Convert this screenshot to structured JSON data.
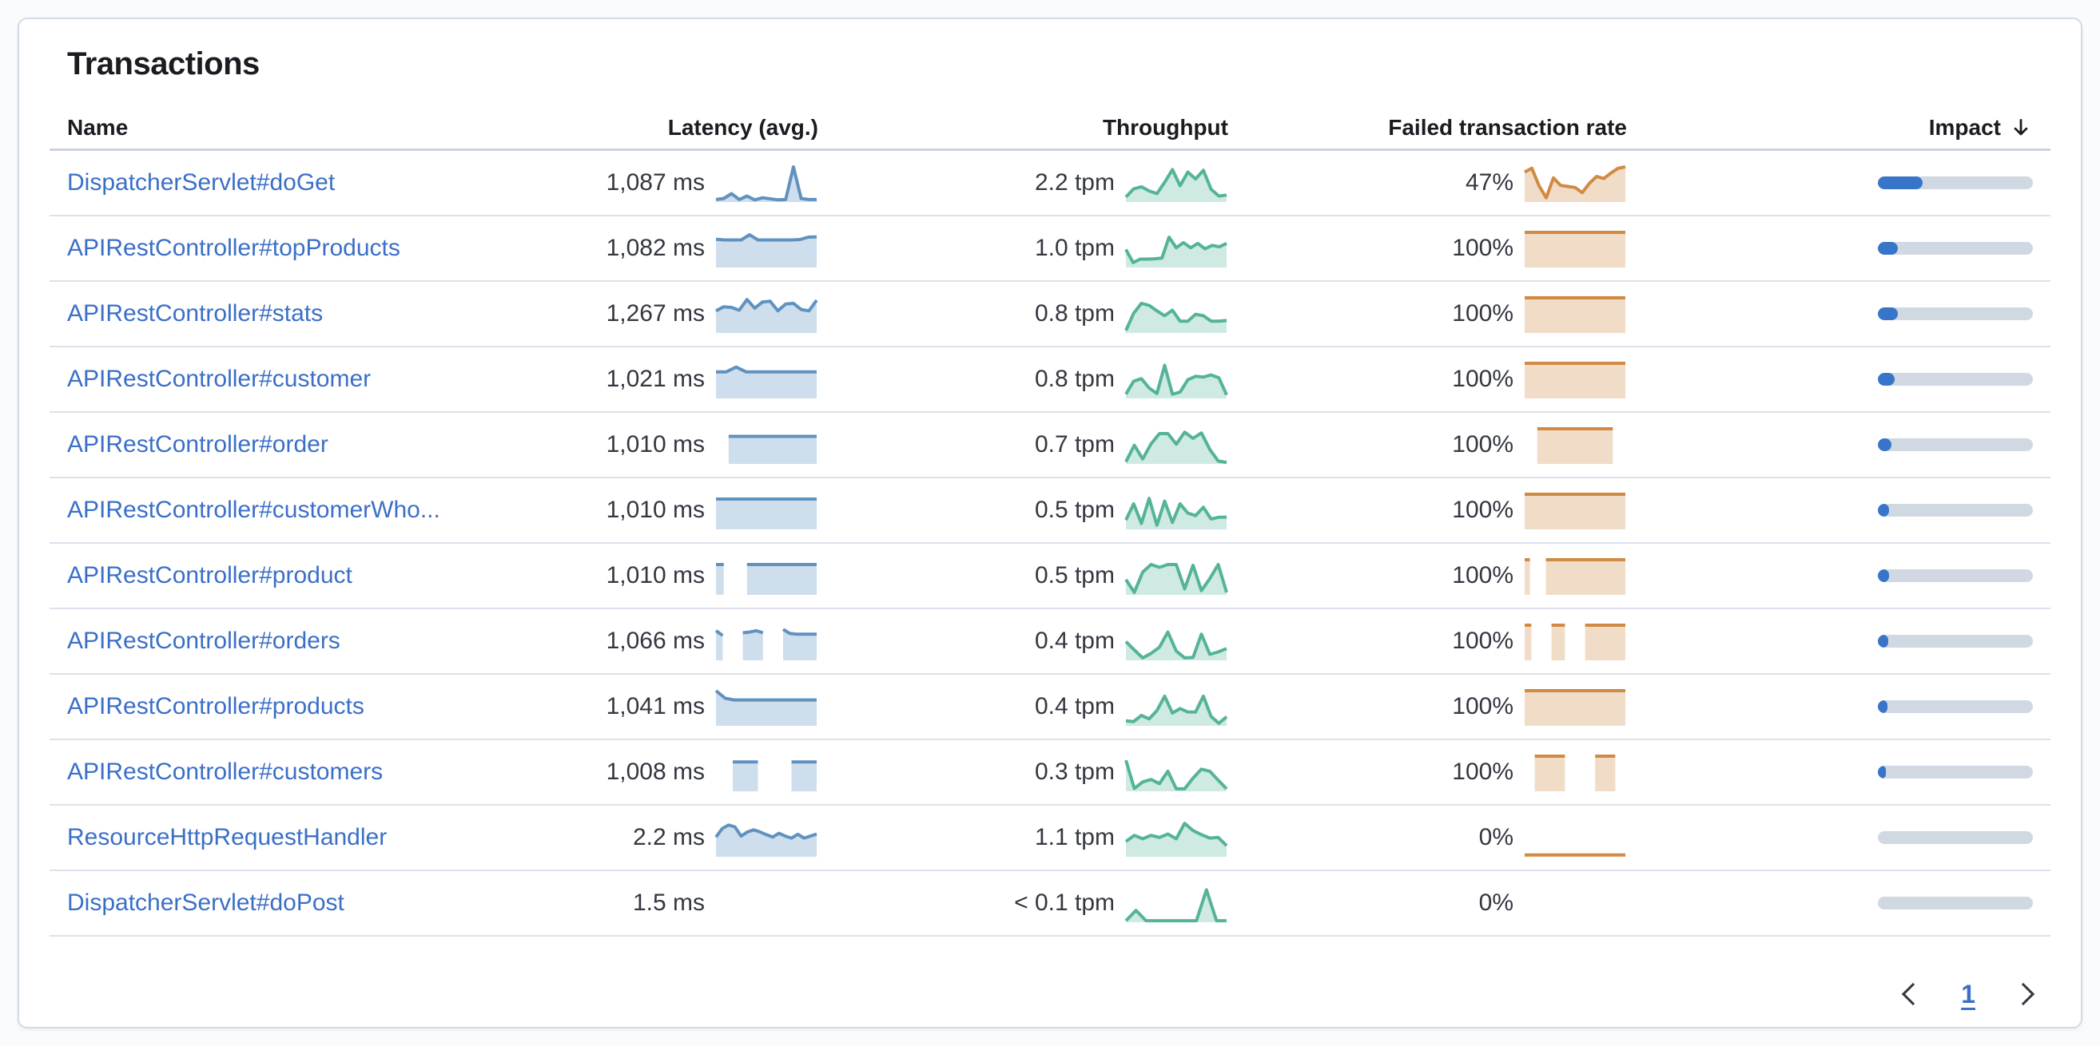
{
  "card": {
    "title": "Transactions"
  },
  "table": {
    "columns": [
      {
        "label": "Name",
        "align": "left"
      },
      {
        "label": "Latency (avg.)",
        "align": "right"
      },
      {
        "label": "Throughput",
        "align": "right"
      },
      {
        "label": "Failed transaction rate",
        "align": "right"
      },
      {
        "label": "Impact",
        "align": "right",
        "sorted": "desc",
        "sort_icon": "arrow-down"
      }
    ],
    "rows": [
      {
        "name": "DispatcherServlet#doGet",
        "latency": "1,087 ms",
        "throughput": "2.2 tpm",
        "failed_rate": "47%",
        "impact_pct": 29,
        "latency_spark": [
          0.05,
          0.08,
          0.22,
          0.05,
          0.15,
          0.04,
          0.1,
          0.07,
          0.04,
          0.05,
          1.0,
          0.08,
          0.05,
          0.05
        ],
        "throughput_spark": [
          0.12,
          0.36,
          0.42,
          0.3,
          0.22,
          0.55,
          0.92,
          0.45,
          0.85,
          0.65,
          0.9,
          0.35,
          0.15,
          0.18
        ],
        "failed_spark": [
          0.85,
          0.96,
          0.45,
          0.1,
          0.68,
          0.46,
          0.43,
          0.4,
          0.25,
          0.52,
          0.72,
          0.66,
          0.82,
          0.96,
          1.0
        ]
      },
      {
        "name": "APIRestController#topProducts",
        "latency": "1,082 ms",
        "throughput": "1.0 tpm",
        "failed_rate": "100%",
        "impact_pct": 13,
        "latency_spark": [
          0.8,
          0.78,
          0.78,
          0.78,
          0.93,
          0.78,
          0.78,
          0.78,
          0.78,
          0.78,
          0.79,
          0.86,
          0.87
        ],
        "throughput_spark": [
          0.5,
          0.12,
          0.22,
          0.22,
          0.23,
          0.25,
          0.86,
          0.55,
          0.7,
          0.55,
          0.68,
          0.52,
          0.62,
          0.58,
          0.68
        ],
        "failed_spark": [
          1,
          1
        ]
      },
      {
        "name": "APIRestController#stats",
        "latency": "1,267 ms",
        "throughput": "0.8 tpm",
        "failed_rate": "100%",
        "impact_pct": 13,
        "latency_spark": [
          0.62,
          0.74,
          0.72,
          0.64,
          0.95,
          0.7,
          0.88,
          0.9,
          0.62,
          0.82,
          0.84,
          0.66,
          0.62,
          0.93
        ],
        "throughput_spark": [
          0.05,
          0.55,
          0.84,
          0.78,
          0.62,
          0.48,
          0.64,
          0.32,
          0.32,
          0.52,
          0.48,
          0.32,
          0.32,
          0.34
        ],
        "failed_spark": [
          1,
          1
        ]
      },
      {
        "name": "APIRestController#customer",
        "latency": "1,021 ms",
        "throughput": "0.8 tpm",
        "failed_rate": "100%",
        "impact_pct": 11,
        "latency_spark": [
          0.75,
          0.75,
          0.89,
          0.75,
          0.75,
          0.75,
          0.75,
          0.75,
          0.75,
          0.75,
          0.75
        ],
        "throughput_spark": [
          0.1,
          0.48,
          0.55,
          0.28,
          0.12,
          0.94,
          0.1,
          0.16,
          0.52,
          0.62,
          0.6,
          0.66,
          0.58,
          0.08
        ],
        "failed_spark": [
          1,
          1
        ]
      },
      {
        "name": "APIRestController#order",
        "latency": "1,010 ms",
        "throughput": "0.7 tpm",
        "failed_rate": "100%",
        "impact_pct": 9,
        "latency_spark": [
          null,
          0.78,
          0.78,
          0.78,
          0.78,
          0.78,
          0.78,
          0.78,
          0.78
        ],
        "throughput_spark": [
          0.04,
          0.52,
          0.12,
          0.56,
          0.86,
          0.86,
          0.55,
          0.9,
          0.72,
          0.88,
          0.4,
          0.06,
          0.02
        ],
        "failed_spark": [
          null,
          1,
          1,
          1,
          1,
          1,
          1,
          1,
          null
        ]
      },
      {
        "name": "APIRestController#customerWho...",
        "latency": "1,010 ms",
        "throughput": "0.5 tpm",
        "failed_rate": "100%",
        "impact_pct": 7,
        "latency_spark": [
          0.86,
          0.86,
          0.86,
          0.86,
          0.86,
          0.86,
          0.86,
          0.86
        ],
        "throughput_spark": [
          0.25,
          0.72,
          0.15,
          0.88,
          0.1,
          0.8,
          0.18,
          0.72,
          0.45,
          0.38,
          0.62,
          0.28,
          0.33,
          0.33
        ],
        "failed_spark": [
          1,
          1
        ]
      },
      {
        "name": "APIRestController#product",
        "latency": "1,010 ms",
        "throughput": "0.5 tpm",
        "failed_rate": "100%",
        "impact_pct": 7,
        "latency_spark": [
          0.86,
          0.86,
          null,
          null,
          0.86,
          0.86,
          0.86,
          0.86,
          0.86,
          0.86,
          0.86,
          0.86,
          0.86,
          0.86
        ],
        "throughput_spark": [
          0.42,
          0.05,
          0.64,
          0.86,
          0.78,
          0.86,
          0.86,
          0.15,
          0.84,
          0.1,
          0.45,
          0.86,
          0.05
        ],
        "failed_spark": [
          1,
          1,
          null,
          null,
          1,
          1,
          1,
          1,
          1,
          1,
          1,
          1,
          1,
          1,
          1,
          1,
          1,
          1,
          1,
          1
        ]
      },
      {
        "name": "APIRestController#orders",
        "latency": "1,066 ms",
        "throughput": "0.4 tpm",
        "failed_rate": "100%",
        "impact_pct": 6.5,
        "latency_spark": [
          0.84,
          0.7,
          null,
          null,
          0.78,
          0.8,
          0.84,
          0.78,
          null,
          null,
          0.88,
          0.76,
          0.74,
          0.74,
          0.74,
          0.74
        ],
        "throughput_spark": [
          0.52,
          0.28,
          0.05,
          0.18,
          0.36,
          0.8,
          0.25,
          0.05,
          0.06,
          0.74,
          0.15,
          0.22,
          0.32
        ],
        "failed_spark": [
          1,
          1,
          null,
          null,
          1,
          1,
          1,
          null,
          null,
          1,
          1,
          1,
          1,
          1,
          1,
          1
        ]
      },
      {
        "name": "APIRestController#products",
        "latency": "1,041 ms",
        "throughput": "0.4 tpm",
        "failed_rate": "100%",
        "impact_pct": 6,
        "latency_spark": [
          1.0,
          0.78,
          0.73,
          0.73,
          0.73,
          0.73,
          0.73,
          0.73,
          0.73,
          0.73,
          0.73,
          0.73
        ],
        "throughput_spark": [
          0.12,
          0.1,
          0.28,
          0.18,
          0.42,
          0.84,
          0.35,
          0.48,
          0.38,
          0.38,
          0.84,
          0.25,
          0.05,
          0.24
        ],
        "failed_spark": [
          1,
          1
        ]
      },
      {
        "name": "APIRestController#customers",
        "latency": "1,008 ms",
        "throughput": "0.3 tpm",
        "failed_rate": "100%",
        "impact_pct": 5,
        "latency_spark": [
          null,
          null,
          0.83,
          0.83,
          0.83,
          0.83,
          null,
          null,
          null,
          0.83,
          0.83,
          0.83,
          0.83
        ],
        "throughput_spark": [
          0.88,
          0.06,
          0.25,
          0.32,
          0.2,
          0.56,
          0.05,
          0.05,
          0.36,
          0.62,
          0.56,
          0.3,
          0.05
        ],
        "failed_spark": [
          null,
          1,
          1,
          1,
          1,
          null,
          null,
          1,
          1,
          1,
          null
        ]
      },
      {
        "name": "ResourceHttpRequestHandler",
        "latency": "2.2 ms",
        "throughput": "1.1 tpm",
        "failed_rate": "0%",
        "impact_pct": 0,
        "latency_spark": [
          0.55,
          0.8,
          0.9,
          0.85,
          0.58,
          0.7,
          0.76,
          0.7,
          0.62,
          0.55,
          0.66,
          0.58,
          0.52,
          0.63,
          0.52,
          0.58,
          0.64
        ],
        "throughput_spark": [
          0.42,
          0.6,
          0.5,
          0.6,
          0.54,
          0.64,
          0.5,
          0.95,
          0.74,
          0.62,
          0.52,
          0.54,
          0.3
        ],
        "failed_spark": [
          0.03,
          0.03
        ]
      },
      {
        "name": "DispatcherServlet#doPost",
        "latency": "1.5 ms",
        "throughput": "< 0.1 tpm",
        "failed_rate": "0%",
        "impact_pct": 0,
        "latency_spark": [],
        "throughput_spark": [
          0.02,
          0.32,
          0.02,
          0.02,
          0.02,
          0.02,
          0.02,
          0.02,
          0.92,
          0.02,
          0.02
        ],
        "failed_spark": []
      }
    ]
  },
  "pagination": {
    "current_page": "1",
    "prev_icon": "chevron-left",
    "next_icon": "chevron-right"
  },
  "colors": {
    "latency_line": "#6092c0",
    "latency_fill": "rgba(96,146,192,0.30)",
    "throughput_line": "#54b399",
    "throughput_fill": "rgba(84,179,153,0.28)",
    "failed_line": "#d08a44",
    "failed_fill": "rgba(208,138,68,0.30)",
    "impact_fill": "#3874c9",
    "impact_track": "#d0d8e2",
    "link": "#3b6fc7",
    "heading": "#1a1c21",
    "text": "#343741",
    "border": "#d3dae6"
  }
}
